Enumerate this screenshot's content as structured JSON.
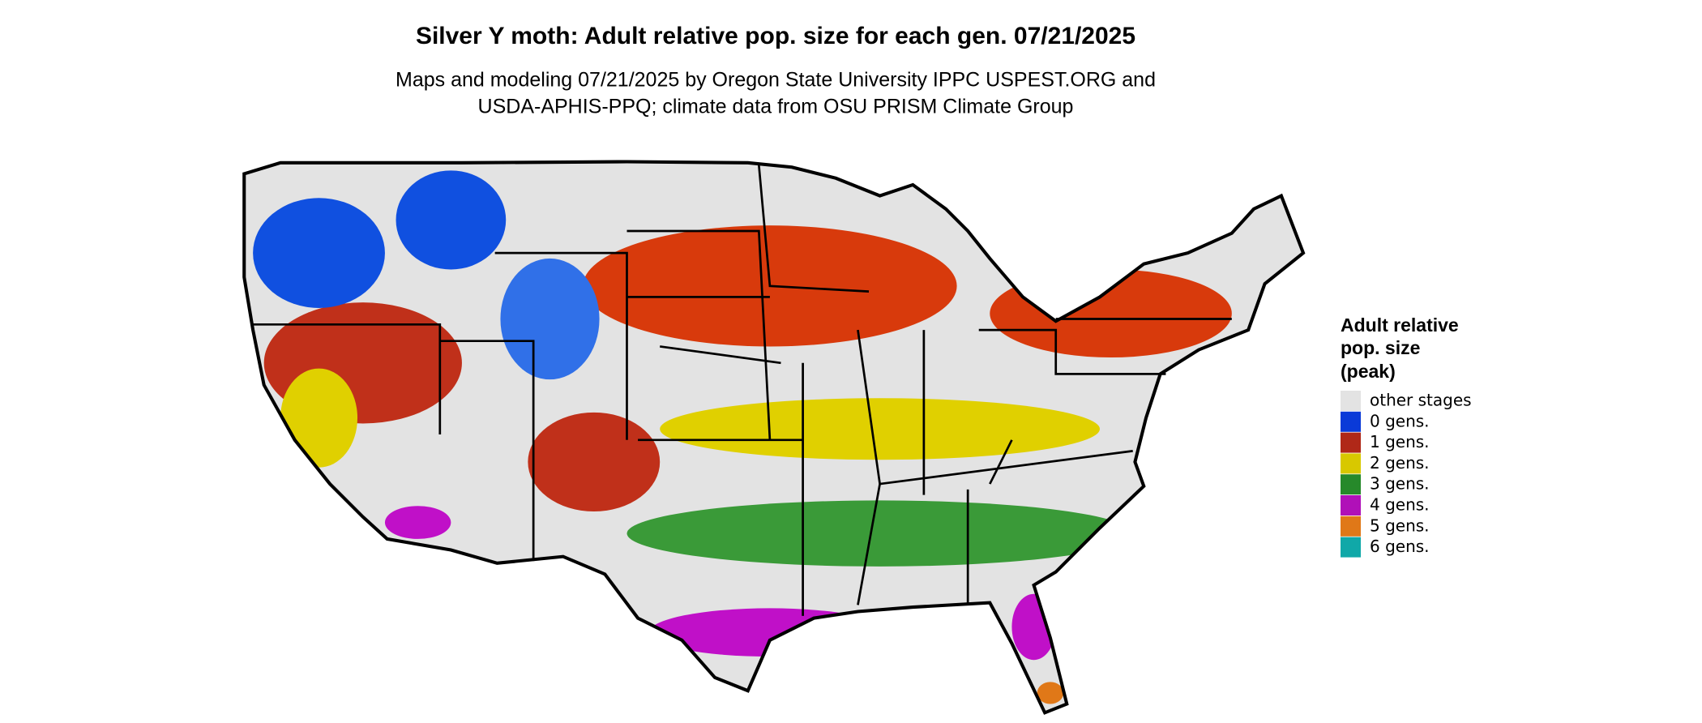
{
  "title": "Silver Y moth: Adult relative pop. size for each gen. 07/21/2025",
  "subtitle": [
    "Maps and modeling 07/21/2025 by Oregon State University IPPC USPEST.ORG and",
    "USDA-APHIS-PPQ; climate data from OSU PRISM Climate Group"
  ],
  "legend": {
    "title": [
      "Adult relative",
      "pop. size",
      "(peak)"
    ],
    "items": [
      {
        "label": "other stages",
        "color": "#e3e3e3"
      },
      {
        "label": "0 gens.",
        "color": "#0a3ad8"
      },
      {
        "label": "1 gens.",
        "color": "#b02818"
      },
      {
        "label": "2 gens.",
        "color": "#d8c800"
      },
      {
        "label": "3 gens.",
        "color": "#26892a"
      },
      {
        "label": "4 gens.",
        "color": "#b010b8"
      },
      {
        "label": "5 gens.",
        "color": "#e07818"
      },
      {
        "label": "6 gens.",
        "color": "#10a8a8"
      }
    ]
  }
}
